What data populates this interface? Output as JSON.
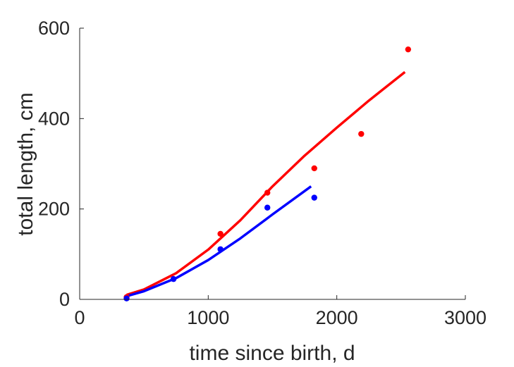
{
  "chart_data": {
    "type": "scatter",
    "title": "",
    "xlabel": "time since birth, d",
    "ylabel": "total length, cm",
    "xlim": [
      0,
      3000
    ],
    "ylim": [
      0,
      600
    ],
    "xticks": [
      0,
      1000,
      2000,
      3000
    ],
    "yticks": [
      0,
      200,
      400,
      600
    ],
    "xtick_labels": [
      "0",
      "1000",
      "2000",
      "3000"
    ],
    "ytick_labels": [
      "0",
      "200",
      "400",
      "600"
    ],
    "grid": false,
    "series": [
      {
        "color": "#ff0000",
        "points": [
          {
            "x": 365,
            "y": 5
          },
          {
            "x": 1095,
            "y": 145
          },
          {
            "x": 1460,
            "y": 236
          },
          {
            "x": 1825,
            "y": 290
          },
          {
            "x": 2190,
            "y": 366
          },
          {
            "x": 2555,
            "y": 553
          }
        ],
        "fit": [
          {
            "x": 365,
            "y": 10
          },
          {
            "x": 500,
            "y": 22
          },
          {
            "x": 750,
            "y": 58
          },
          {
            "x": 1000,
            "y": 110
          },
          {
            "x": 1250,
            "y": 175
          },
          {
            "x": 1500,
            "y": 250
          },
          {
            "x": 1750,
            "y": 318
          },
          {
            "x": 2000,
            "y": 380
          },
          {
            "x": 2250,
            "y": 440
          },
          {
            "x": 2530,
            "y": 503
          }
        ]
      },
      {
        "color": "#0000ff",
        "points": [
          {
            "x": 365,
            "y": 2
          },
          {
            "x": 730,
            "y": 45
          },
          {
            "x": 1095,
            "y": 111
          },
          {
            "x": 1460,
            "y": 203
          },
          {
            "x": 1825,
            "y": 225
          }
        ],
        "fit": [
          {
            "x": 365,
            "y": 7
          },
          {
            "x": 500,
            "y": 18
          },
          {
            "x": 750,
            "y": 47
          },
          {
            "x": 1000,
            "y": 87
          },
          {
            "x": 1250,
            "y": 135
          },
          {
            "x": 1500,
            "y": 188
          },
          {
            "x": 1800,
            "y": 250
          }
        ]
      }
    ]
  }
}
